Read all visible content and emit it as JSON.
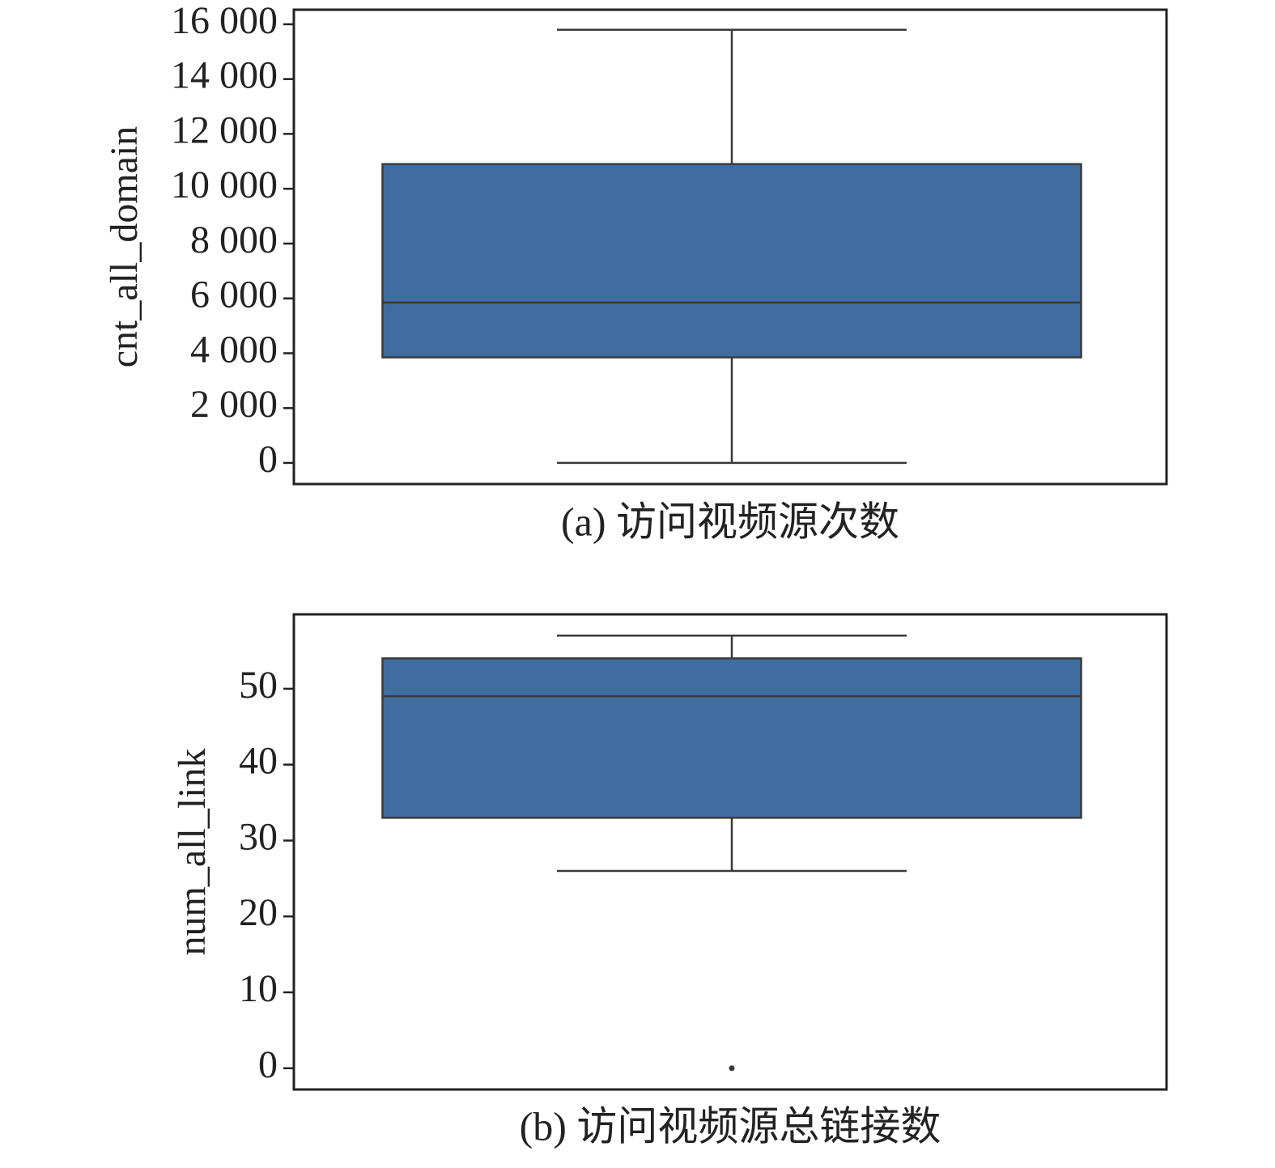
{
  "chart_data": [
    {
      "type": "box",
      "ylabel": "cnt_all_domain",
      "caption": "(a) 访问视频源次数",
      "color": "#3f6d9f",
      "ylim": [
        -770,
        16530
      ],
      "yticks": [
        0,
        {
          "value": 2000,
          "label": "2 000"
        },
        {
          "value": 4000,
          "label": "4 000"
        },
        {
          "value": 6000,
          "label": "6 000"
        },
        {
          "value": 8000,
          "label": "8 000"
        },
        {
          "value": 10000,
          "label": "10 000"
        },
        {
          "value": 12000,
          "label": "12 000"
        },
        {
          "value": 14000,
          "label": "14 000"
        },
        {
          "value": 16000,
          "label": "16 000"
        }
      ],
      "box": {
        "whisker_low": 0,
        "q1": 3850,
        "median": 5850,
        "q3": 10900,
        "whisker_high": 15800,
        "outliers": []
      }
    },
    {
      "type": "box",
      "ylabel": "num_all_link",
      "caption": "(b) 访问视频源总链接数",
      "color": "#3f6d9f",
      "ylim": [
        -2.8,
        59.8
      ],
      "yticks": [
        0,
        10,
        20,
        30,
        40,
        50
      ],
      "box": {
        "whisker_low": 26,
        "q1": 33,
        "median": 49,
        "q3": 54,
        "whisker_high": 57,
        "outliers": [
          0
        ]
      }
    }
  ]
}
